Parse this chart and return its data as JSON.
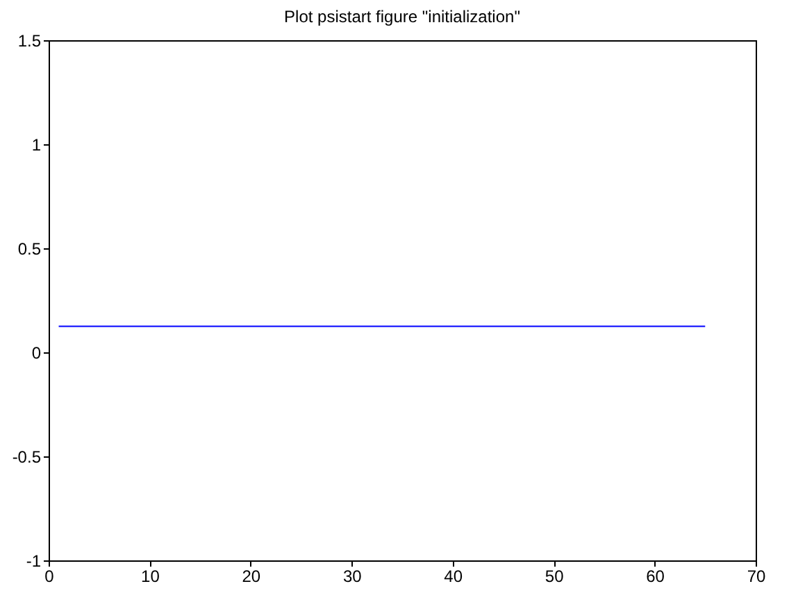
{
  "chart_data": {
    "type": "line",
    "title": "Plot psistart figure \"initialization\"",
    "x": [
      1,
      65
    ],
    "series": [
      {
        "color": "#0000ff",
        "values": [
          0.125,
          0.125
        ]
      }
    ],
    "xlim": [
      0,
      70
    ],
    "xticks": [
      0,
      10,
      20,
      30,
      40,
      50,
      60,
      70
    ],
    "ylim": [
      -1,
      1.5
    ],
    "yticks": [
      -1,
      -0.5,
      0,
      0.5,
      1,
      1.5
    ],
    "grid": false,
    "legend": false,
    "marker": "none",
    "line_style": "solid"
  }
}
